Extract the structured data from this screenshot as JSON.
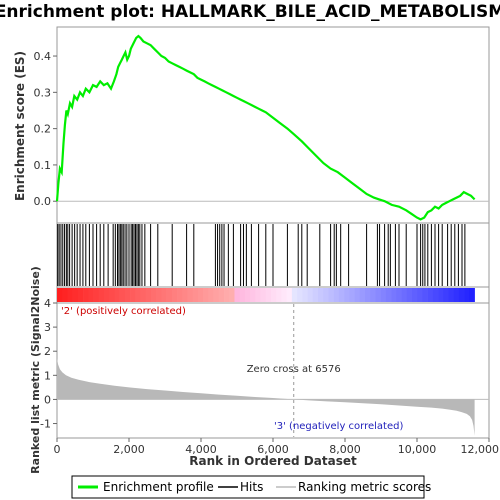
{
  "chart_data": {
    "type": "line",
    "title": "Enrichment plot: HALLMARK_BILE_ACID_METABOLISM",
    "xlabel": "Rank in Ordered Dataset",
    "ylabel_top": "Enrichment score (ES)",
    "ylabel_bottom": "Ranked list metric (Signal2Noise)",
    "x_range": [
      0,
      12000
    ],
    "n_genes": 11600,
    "es_ylim": [
      -0.06,
      0.48
    ],
    "metric_ylim": [
      -1.6,
      4
    ],
    "x_ticks": [
      0,
      2000,
      4000,
      6000,
      8000,
      10000,
      12000
    ],
    "x_tick_labels": [
      "0",
      "2,000",
      "4,000",
      "6,000",
      "8,000",
      "10,000",
      "12,000"
    ],
    "es_ticks": [
      0.0,
      0.1,
      0.2,
      0.3,
      0.4
    ],
    "es_tick_labels": [
      "0.0",
      "0.1",
      "0.2",
      "0.3",
      "0.4"
    ],
    "metric_ticks": [
      -1,
      0,
      1,
      2,
      3,
      4
    ],
    "metric_tick_labels": [
      "-1",
      "0",
      "1",
      "2",
      "3",
      "4"
    ],
    "zero_cross": 6576,
    "zero_cross_label": "Zero cross at 6576",
    "pos_label": "'2' (positively correlated)",
    "neg_label": "'3' (negatively correlated)",
    "es_curve": {
      "x": [
        0,
        40,
        80,
        130,
        180,
        220,
        260,
        300,
        360,
        420,
        480,
        560,
        640,
        720,
        800,
        900,
        1000,
        1100,
        1200,
        1300,
        1400,
        1500,
        1580,
        1650,
        1700,
        1750,
        1800,
        1850,
        1900,
        1950,
        2000,
        2050,
        2100,
        2150,
        2200,
        2260,
        2320,
        2400,
        2500,
        2600,
        2700,
        2800,
        2900,
        3000,
        3100,
        3200,
        3300,
        3400,
        3500,
        3600,
        3700,
        3800,
        3900,
        4000,
        4100,
        4200,
        4300,
        4400,
        4500,
        4600,
        4700,
        4800,
        4900,
        5000,
        5100,
        5200,
        5300,
        5400,
        5500,
        5600,
        5700,
        5800,
        6000,
        6200,
        6400,
        6576,
        6800,
        7000,
        7200,
        7400,
        7600,
        7800,
        8000,
        8200,
        8400,
        8600,
        8800,
        8950,
        9100,
        9300,
        9500,
        9700,
        9850,
        10000,
        10100,
        10200,
        10300,
        10400,
        10500,
        10600,
        10700,
        10800,
        10900,
        11000,
        11100,
        11200,
        11300,
        11400,
        11500,
        11600
      ],
      "y": [
        0.0,
        0.05,
        0.09,
        0.08,
        0.16,
        0.21,
        0.25,
        0.24,
        0.27,
        0.26,
        0.29,
        0.28,
        0.3,
        0.29,
        0.31,
        0.3,
        0.32,
        0.315,
        0.33,
        0.32,
        0.325,
        0.31,
        0.33,
        0.35,
        0.37,
        0.38,
        0.39,
        0.4,
        0.41,
        0.39,
        0.4,
        0.42,
        0.43,
        0.44,
        0.45,
        0.455,
        0.45,
        0.44,
        0.435,
        0.43,
        0.42,
        0.41,
        0.4,
        0.395,
        0.385,
        0.38,
        0.375,
        0.37,
        0.365,
        0.36,
        0.355,
        0.35,
        0.34,
        0.335,
        0.33,
        0.325,
        0.32,
        0.315,
        0.31,
        0.305,
        0.3,
        0.295,
        0.29,
        0.285,
        0.28,
        0.275,
        0.27,
        0.265,
        0.26,
        0.255,
        0.25,
        0.245,
        0.23,
        0.215,
        0.2,
        0.185,
        0.165,
        0.145,
        0.125,
        0.105,
        0.09,
        0.08,
        0.065,
        0.05,
        0.035,
        0.02,
        0.01,
        0.005,
        0.0,
        -0.01,
        -0.015,
        -0.025,
        -0.035,
        -0.045,
        -0.05,
        -0.045,
        -0.03,
        -0.025,
        -0.015,
        -0.02,
        -0.01,
        -0.005,
        0.0,
        0.005,
        0.01,
        0.015,
        0.025,
        0.02,
        0.015,
        0.005
      ]
    },
    "hits": [
      20,
      60,
      110,
      160,
      210,
      260,
      300,
      350,
      420,
      490,
      560,
      640,
      720,
      800,
      900,
      1000,
      1100,
      1200,
      1300,
      1420,
      1560,
      1620,
      1680,
      1720,
      1760,
      1800,
      1840,
      1890,
      1940,
      2000,
      2060,
      2100,
      2140,
      2180,
      2220,
      2260,
      2300,
      2360,
      2440,
      2600,
      2800,
      3200,
      3600,
      3800,
      4400,
      4460,
      4520,
      4580,
      4640,
      4760,
      4900,
      5100,
      5180,
      5260,
      5400,
      5600,
      5800,
      6000,
      6400,
      6700,
      6800,
      6950,
      7300,
      7600,
      7700,
      7760,
      7880,
      8100,
      8600,
      8900,
      8960,
      9100,
      9200,
      9260,
      9400,
      9500,
      9700,
      10000,
      10100,
      10160,
      10220,
      10300,
      10400,
      10500,
      10600,
      10700,
      10850,
      10950,
      11050,
      11150,
      11250,
      11330
    ],
    "metric_curve": {
      "x": [
        0,
        30,
        80,
        150,
        250,
        400,
        600,
        900,
        1200,
        1600,
        2000,
        2500,
        3000,
        3500,
        4000,
        4500,
        5000,
        5500,
        6000,
        6576,
        7000,
        7500,
        8000,
        8500,
        9000,
        9500,
        10000,
        10400,
        10700,
        10900,
        11100,
        11250,
        11380,
        11470,
        11530,
        11570,
        11600
      ],
      "y": [
        1.7,
        1.45,
        1.25,
        1.12,
        1.0,
        0.9,
        0.82,
        0.72,
        0.65,
        0.57,
        0.5,
        0.43,
        0.37,
        0.31,
        0.26,
        0.2,
        0.15,
        0.1,
        0.06,
        0.0,
        -0.04,
        -0.08,
        -0.12,
        -0.16,
        -0.2,
        -0.25,
        -0.3,
        -0.34,
        -0.38,
        -0.42,
        -0.47,
        -0.53,
        -0.6,
        -0.7,
        -0.85,
        -1.1,
        -1.5
      ]
    },
    "legend": [
      "Enrichment profile",
      "Hits",
      "Ranking metric scores"
    ],
    "colors": {
      "es_line": "#00ee00",
      "hits": "#000000",
      "metric_fill": "#b8b8b8",
      "zero_line": "#999999"
    }
  }
}
